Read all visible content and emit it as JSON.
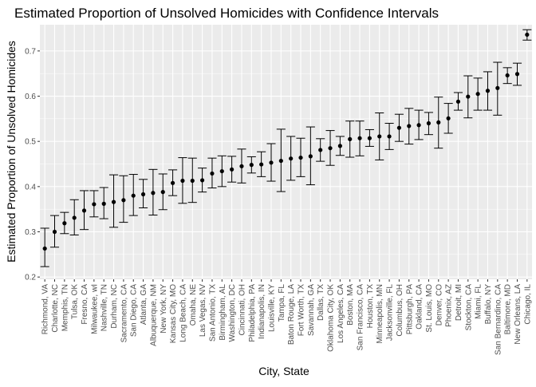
{
  "chart_data": {
    "type": "scatter",
    "title": "Estimated Proportion of Unsolved Homicides with Confidence Intervals",
    "xlabel": "City, State",
    "ylabel": "Estimated Proportion of Unsolved Homicides",
    "ylim": [
      0.195,
      0.758
    ],
    "yticks": [
      0.2,
      0.3,
      0.4,
      0.5,
      0.6,
      0.7
    ],
    "grid": true,
    "legend": "none",
    "colors": {
      "panel": "#EBEBEB",
      "grid": "#FFFFFF",
      "point": "#000000",
      "text": "#1A1A1A",
      "tick_text": "#4D4D4D"
    },
    "series": [
      {
        "points": [
          {
            "x": "Richmond, VA",
            "y": 0.263,
            "lo": 0.223,
            "hi": 0.308
          },
          {
            "x": "Charlotte, NC",
            "y": 0.3,
            "lo": 0.266,
            "hi": 0.336
          },
          {
            "x": "Memphis, TN",
            "y": 0.319,
            "lo": 0.296,
            "hi": 0.343
          },
          {
            "x": "Tulsa, OK",
            "y": 0.331,
            "lo": 0.293,
            "hi": 0.371
          },
          {
            "x": "Fresno, CA",
            "y": 0.347,
            "lo": 0.305,
            "hi": 0.391
          },
          {
            "x": "Milwaukee, wI",
            "y": 0.361,
            "lo": 0.333,
            "hi": 0.391
          },
          {
            "x": "Nashville, TN",
            "y": 0.362,
            "lo": 0.329,
            "hi": 0.398
          },
          {
            "x": "Durham, NC",
            "y": 0.366,
            "lo": 0.31,
            "hi": 0.426
          },
          {
            "x": "Sacramento, CA",
            "y": 0.37,
            "lo": 0.321,
            "hi": 0.424
          },
          {
            "x": "San Diego, CA",
            "y": 0.38,
            "lo": 0.336,
            "hi": 0.427
          },
          {
            "x": "Atlanta, GA",
            "y": 0.383,
            "lo": 0.353,
            "hi": 0.416
          },
          {
            "x": "Albuquerque, NM",
            "y": 0.386,
            "lo": 0.337,
            "hi": 0.438
          },
          {
            "x": "New York, NY",
            "y": 0.388,
            "lo": 0.349,
            "hi": 0.428
          },
          {
            "x": "Kansas City, MO",
            "y": 0.408,
            "lo": 0.38,
            "hi": 0.437
          },
          {
            "x": "Long Beach, CA",
            "y": 0.413,
            "lo": 0.363,
            "hi": 0.464
          },
          {
            "x": "Omaha, NE",
            "y": 0.413,
            "lo": 0.365,
            "hi": 0.463
          },
          {
            "x": "Las Vegas, NV",
            "y": 0.414,
            "lo": 0.388,
            "hi": 0.441
          },
          {
            "x": "San Antonio, TX",
            "y": 0.429,
            "lo": 0.397,
            "hi": 0.463
          },
          {
            "x": "Birmingham, AL",
            "y": 0.434,
            "lo": 0.4,
            "hi": 0.468
          },
          {
            "x": "Washington, DC",
            "y": 0.438,
            "lo": 0.41,
            "hi": 0.467
          },
          {
            "x": "Cincinnati, OH",
            "y": 0.445,
            "lo": 0.408,
            "hi": 0.483
          },
          {
            "x": "Philadelphia, PA",
            "y": 0.448,
            "lo": 0.43,
            "hi": 0.466
          },
          {
            "x": "Indianapolis, IN",
            "y": 0.449,
            "lo": 0.422,
            "hi": 0.477
          },
          {
            "x": "Louisville, KY",
            "y": 0.453,
            "lo": 0.412,
            "hi": 0.495
          },
          {
            "x": "Tampa, FL",
            "y": 0.457,
            "lo": 0.389,
            "hi": 0.527
          },
          {
            "x": "Baton Rouge, LA",
            "y": 0.462,
            "lo": 0.414,
            "hi": 0.511
          },
          {
            "x": "Fort Worth, TX",
            "y": 0.464,
            "lo": 0.422,
            "hi": 0.507
          },
          {
            "x": "Savannah, GA",
            "y": 0.467,
            "lo": 0.404,
            "hi": 0.532
          },
          {
            "x": "Dallas, TX",
            "y": 0.481,
            "lo": 0.456,
            "hi": 0.506
          },
          {
            "x": "Oklahoma City, OK",
            "y": 0.485,
            "lo": 0.447,
            "hi": 0.524
          },
          {
            "x": "Los Angeles, CA",
            "y": 0.49,
            "lo": 0.469,
            "hi": 0.511
          },
          {
            "x": "Boston, MA",
            "y": 0.505,
            "lo": 0.465,
            "hi": 0.545
          },
          {
            "x": "San Francisco, CA",
            "y": 0.507,
            "lo": 0.468,
            "hi": 0.545
          },
          {
            "x": "Houston, TX",
            "y": 0.507,
            "lo": 0.489,
            "hi": 0.526
          },
          {
            "x": "Minneapolis, MN",
            "y": 0.511,
            "lo": 0.459,
            "hi": 0.563
          },
          {
            "x": "Jacksonville, FL",
            "y": 0.511,
            "lo": 0.482,
            "hi": 0.54
          },
          {
            "x": "Columbus, OH",
            "y": 0.53,
            "lo": 0.5,
            "hi": 0.56
          },
          {
            "x": "Pittsburgh, PA",
            "y": 0.534,
            "lo": 0.494,
            "hi": 0.573
          },
          {
            "x": "Oakland, CA",
            "y": 0.536,
            "lo": 0.504,
            "hi": 0.569
          },
          {
            "x": "St. Louis, MO",
            "y": 0.54,
            "lo": 0.515,
            "hi": 0.564
          },
          {
            "x": "Denver, CO",
            "y": 0.542,
            "lo": 0.485,
            "hi": 0.598
          },
          {
            "x": "Phoenix, AZ",
            "y": 0.551,
            "lo": 0.518,
            "hi": 0.584
          },
          {
            "x": "Detroit, MI",
            "y": 0.588,
            "lo": 0.569,
            "hi": 0.608
          },
          {
            "x": "Stockton, CA",
            "y": 0.599,
            "lo": 0.552,
            "hi": 0.645
          },
          {
            "x": "Miami, FL",
            "y": 0.605,
            "lo": 0.569,
            "hi": 0.64
          },
          {
            "x": "Buffalo, NY",
            "y": 0.612,
            "lo": 0.569,
            "hi": 0.654
          },
          {
            "x": "San Bernardino, CA",
            "y": 0.618,
            "lo": 0.558,
            "hi": 0.675
          },
          {
            "x": "Baltimore, MD",
            "y": 0.646,
            "lo": 0.628,
            "hi": 0.663
          },
          {
            "x": "New Orleans, LA",
            "y": 0.649,
            "lo": 0.624,
            "hi": 0.673
          },
          {
            "x": "Chicago, IL",
            "y": 0.736,
            "lo": 0.724,
            "hi": 0.747
          }
        ]
      }
    ]
  }
}
